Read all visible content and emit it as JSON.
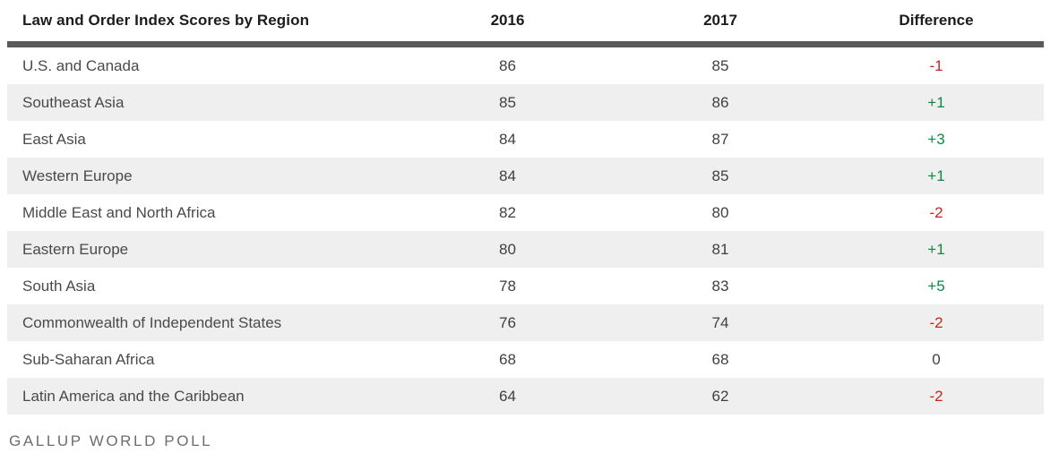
{
  "chart_data": {
    "type": "table",
    "title": "Law and Order Index Scores by Region",
    "column_headers": [
      "2016",
      "2017",
      "Difference"
    ],
    "rows": [
      {
        "region": "U.S. and Canada",
        "score_2016": "86",
        "score_2017": "85",
        "difference": "-1"
      },
      {
        "region": "Southeast Asia",
        "score_2016": "85",
        "score_2017": "86",
        "difference": "+1"
      },
      {
        "region": "East Asia",
        "score_2016": "84",
        "score_2017": "87",
        "difference": "+3"
      },
      {
        "region": "Western Europe",
        "score_2016": "84",
        "score_2017": "85",
        "difference": "+1"
      },
      {
        "region": "Middle East and North Africa",
        "score_2016": "82",
        "score_2017": "80",
        "difference": "-2"
      },
      {
        "region": "Eastern Europe",
        "score_2016": "80",
        "score_2017": "81",
        "difference": "+1"
      },
      {
        "region": "South Asia",
        "score_2016": "78",
        "score_2017": "83",
        "difference": "+5"
      },
      {
        "region": "Commonwealth of Independent States",
        "score_2016": "76",
        "score_2017": "74",
        "difference": "-2"
      },
      {
        "region": "Sub-Saharan Africa",
        "score_2016": "68",
        "score_2017": "68",
        "difference": "0"
      },
      {
        "region": "Latin America and the Caribbean",
        "score_2016": "64",
        "score_2017": "62",
        "difference": "-2"
      }
    ],
    "source": "GALLUP WORLD POLL",
    "colors": {
      "positive": "#0b8a42",
      "negative": "#c3261c",
      "neutral": "#414144",
      "row_alt_bg": "#efefef",
      "header_rule": "#5a5a5c"
    },
    "layout_hints": {
      "row_striping": "even rows shaded",
      "numeric_alignment": "center"
    }
  }
}
